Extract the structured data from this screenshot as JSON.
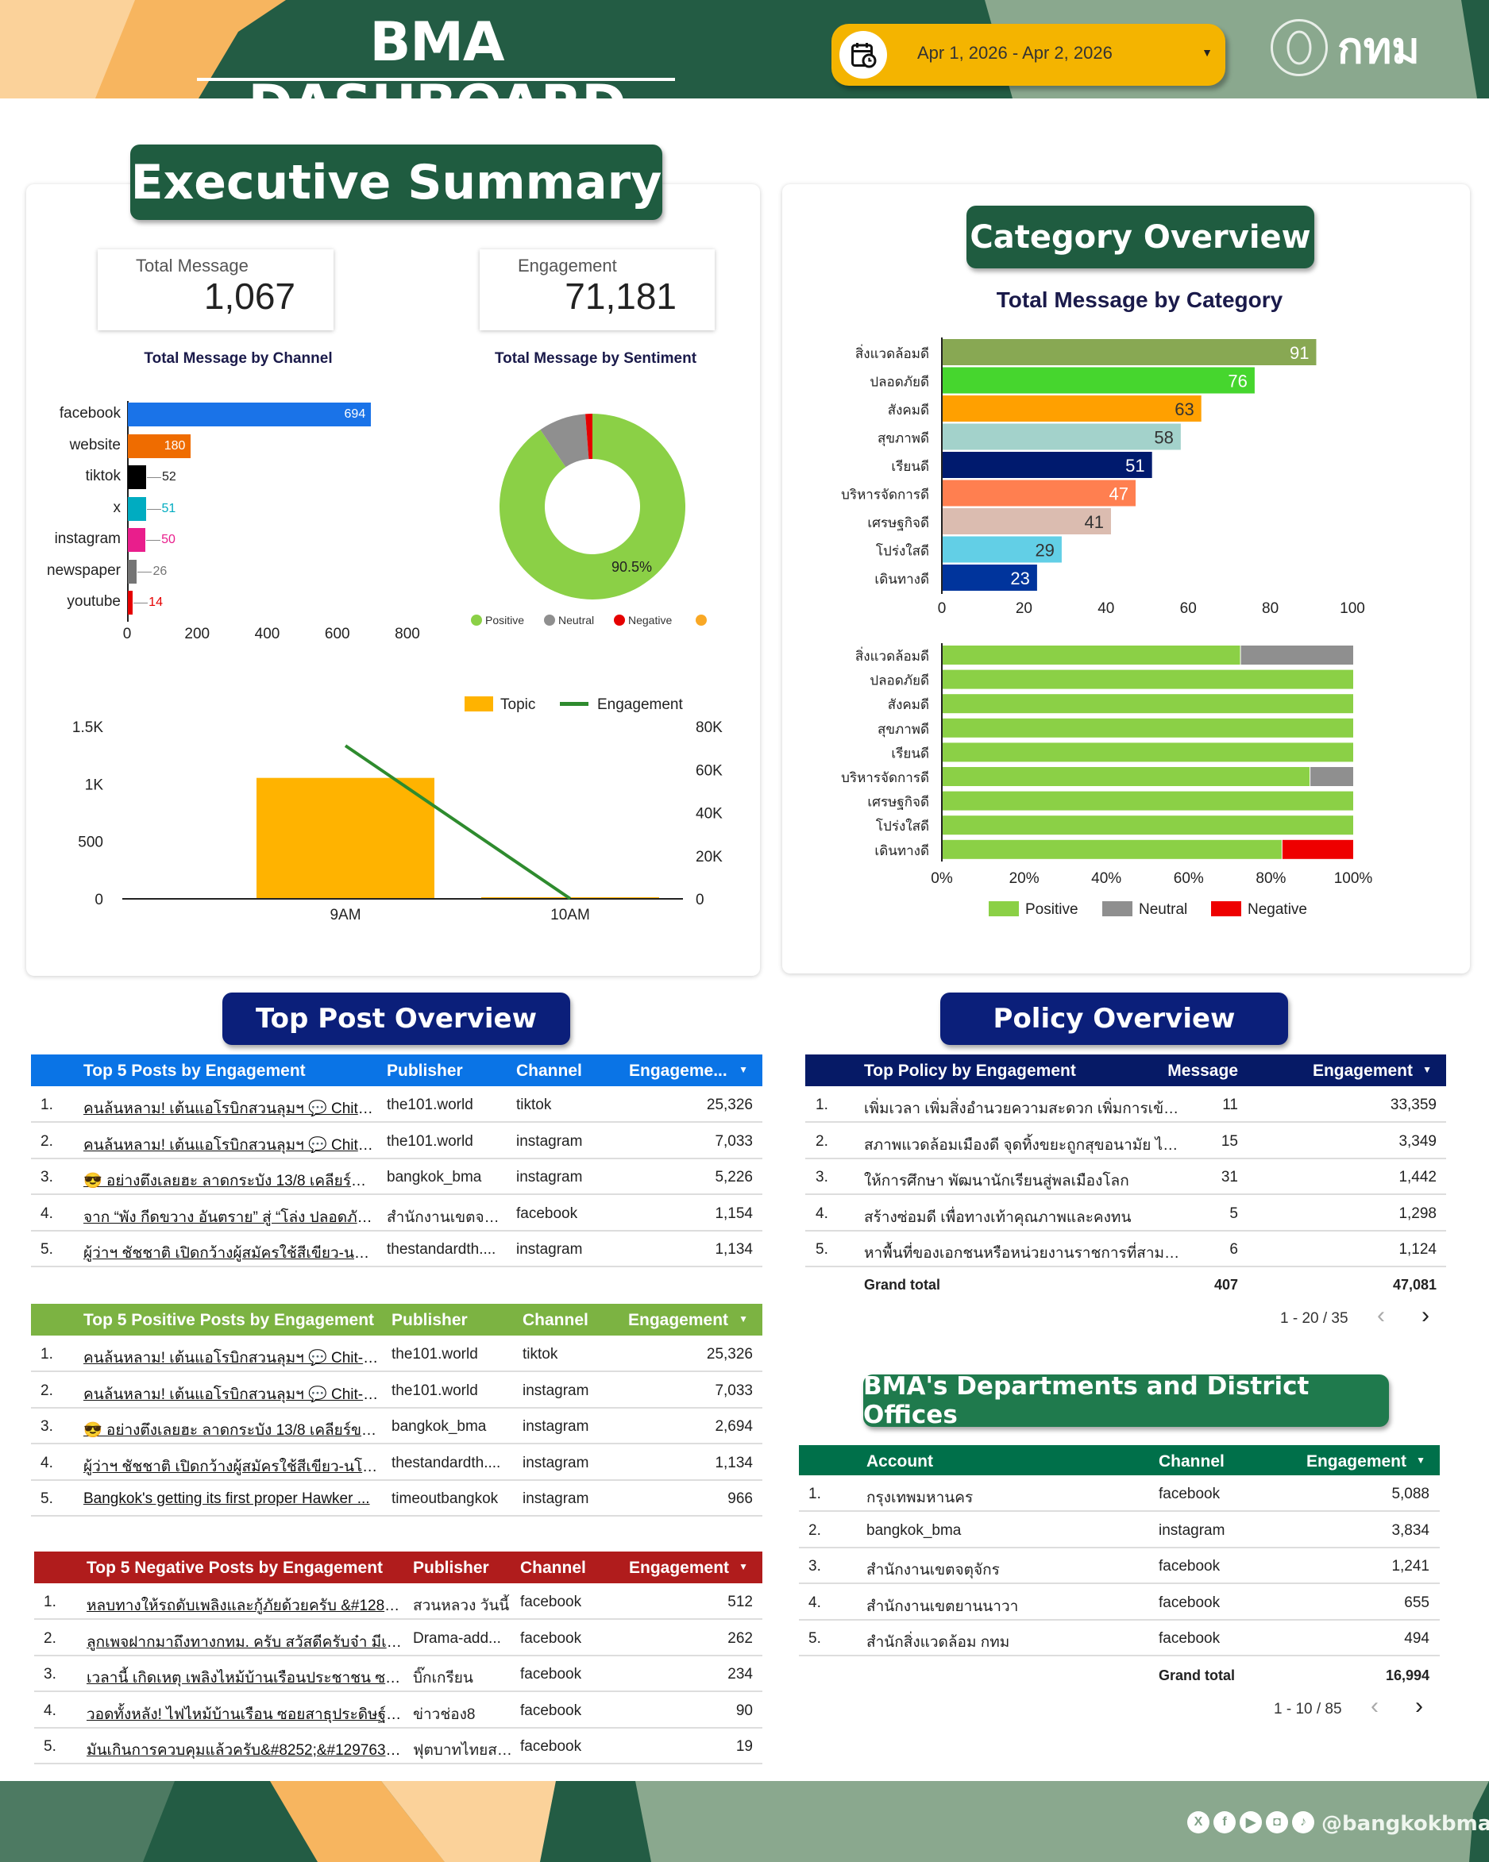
{
  "header": {
    "title": "BMA DASHBOARD",
    "date_range": "Apr 1, 2026 - Apr 2, 2026",
    "logo_text": "กทม"
  },
  "executive_summary": {
    "title": "Executive Summary",
    "kpis": [
      {
        "label": "Total Message",
        "value": "1,067"
      },
      {
        "label": "Engagement",
        "value": "71,181"
      }
    ]
  },
  "category_overview": {
    "title": "Category Overview"
  },
  "top_post_overview": {
    "title": "Top Post Overview"
  },
  "policy_overview": {
    "title": "Policy Overview"
  },
  "departments": {
    "title": "BMA's Departments and District Offices"
  },
  "colors": {
    "dark_green": "#1f5c40",
    "navy": "#0b1f7a",
    "yellow": "#f4b400"
  },
  "chart_data": [
    {
      "type": "bar",
      "orientation": "horizontal",
      "title": "Total Message by Channel",
      "categories": [
        "facebook",
        "website",
        "tiktok",
        "x",
        "instagram",
        "newspaper",
        "youtube"
      ],
      "values": [
        694,
        180,
        52,
        51,
        50,
        26,
        14
      ],
      "colors": [
        "#1a73e8",
        "#ef6c00",
        "#000000",
        "#00acc1",
        "#e91e8c",
        "#757575",
        "#e50000"
      ],
      "xlim": [
        0,
        800
      ],
      "xticks": [
        "0",
        "200",
        "400",
        "600",
        "800"
      ]
    },
    {
      "type": "pie",
      "donut": true,
      "title": "Total Message by Sentiment",
      "labels": [
        "Positive",
        "Neutral",
        "Negative"
      ],
      "values": [
        966,
        88,
        13
      ],
      "colors": [
        "#8bd046",
        "#8f8f8f",
        "#e50000",
        "#f9a825"
      ],
      "data_label": "90.5%"
    },
    {
      "type": "bar+line",
      "title": "",
      "categories": [
        "9AM",
        "10AM"
      ],
      "series": [
        {
          "name": "Topic",
          "type": "bar",
          "axis": "left",
          "values": [
            1053,
            14
          ],
          "color": "#ffb300"
        },
        {
          "name": "Engagement",
          "type": "line",
          "axis": "right",
          "values": [
            71100,
            81
          ],
          "color": "#2e8b2e"
        }
      ],
      "ylim_left": [
        0,
        1500
      ],
      "yticks_left": [
        "0",
        "500",
        "1K",
        "1.5K"
      ],
      "ylim_right": [
        0,
        80000
      ],
      "yticks_right": [
        "0",
        "20K",
        "40K",
        "60K",
        "80K"
      ]
    },
    {
      "type": "bar",
      "orientation": "horizontal",
      "title": "Total Message by Category",
      "categories": [
        "สิ่งแวดล้อมดี",
        "ปลอดภัยดี",
        "สังคมดี",
        "สุขภาพดี",
        "เรียนดี",
        "บริหารจัดการดี",
        "เศรษฐกิจดี",
        "โปร่งใสดี",
        "เดินทางดี"
      ],
      "values": [
        91,
        76,
        63,
        58,
        51,
        47,
        41,
        29,
        23
      ],
      "colors": [
        "#88a853",
        "#46d62e",
        "#ffa000",
        "#a3d2cb",
        "#001a6e",
        "#ff7f50",
        "#dbbcb0",
        "#62cfe6",
        "#00349c"
      ],
      "label_colors": [
        "#fff",
        "#fff",
        "#333",
        "#333",
        "#fff",
        "#fff",
        "#333",
        "#333",
        "#fff"
      ],
      "xlim": [
        0,
        100
      ],
      "xticks": [
        "0",
        "20",
        "40",
        "60",
        "80",
        "100"
      ]
    },
    {
      "type": "bar",
      "orientation": "horizontal",
      "stacked": "percent",
      "title": "",
      "categories": [
        "สิ่งแวดล้อมดี",
        "ปลอดภัยดี",
        "สังคมดี",
        "สุขภาพดี",
        "เรียนดี",
        "บริหารจัดการดี",
        "เศรษฐกิจดี",
        "โปร่งใสดี",
        "เดินทางดี"
      ],
      "series": [
        {
          "name": "Positive",
          "values": [
            72.5,
            100,
            100,
            100,
            100,
            89.4,
            100,
            100,
            82.6
          ],
          "color": "#8bd046"
        },
        {
          "name": "Neutral",
          "values": [
            27.5,
            0,
            0,
            0,
            0,
            10.6,
            0,
            0,
            0
          ],
          "color": "#8f8f8f"
        },
        {
          "name": "Negative",
          "values": [
            0,
            0,
            0,
            0,
            0,
            0,
            0,
            0,
            17.4
          ],
          "color": "#ee0000"
        }
      ],
      "xlim": [
        0,
        100
      ],
      "xticks": [
        "0%",
        "20%",
        "40%",
        "60%",
        "80%",
        "100%"
      ]
    }
  ],
  "tables": {
    "top_posts": {
      "headers": [
        "Top 5 Posts by Engagement",
        "Publisher",
        "Channel",
        "Engageme..."
      ],
      "rows": [
        {
          "n": "1.",
          "title": "คนล้นหลาม! เต้นแอโรบิกสวนลุมฯ 💬 Chit-Chat...",
          "publisher": "the101.world",
          "channel": "tiktok",
          "engagement": "25,326"
        },
        {
          "n": "2.",
          "title": "คนล้นหลาม! เต้นแอโรบิกสวนลุมฯ 💬 Chit-Chat...",
          "publisher": "the101.world",
          "channel": "instagram",
          "engagement": "7,033"
        },
        {
          "n": "3.",
          "title": "😎 อย่างตึงเลยฮะ ลาดกระบัง 13/8 เคลียร์ขยะกอง...",
          "publisher": "bangkok_bma",
          "channel": "instagram",
          "engagement": "5,226"
        },
        {
          "n": "4.",
          "title": "จาก “พัง กีดขวาง อันตราย” สู่ “โล่ง ปลอดภัย เดินส...",
          "publisher": "สำนักงานเขตจตุจักร",
          "channel": "facebook",
          "engagement": "1,154"
        },
        {
          "n": "5.",
          "title": "ผู้ว่าฯ ชัชชาติ เปิดกว้างผู้สมัครใช้สีเขียว-นโยบาย ก...",
          "publisher": "thestandardth....",
          "channel": "instagram",
          "engagement": "1,134"
        }
      ]
    },
    "positive_posts": {
      "headers": [
        "Top 5 Positive Posts by Engagement",
        "Publisher",
        "Channel",
        "Engagement"
      ],
      "rows": [
        {
          "n": "1.",
          "title": "คนล้นหลาม! เต้นแอโรบิกสวนลุมฯ 💬 Chit-Chat ...",
          "publisher": "the101.world",
          "channel": "tiktok",
          "engagement": "25,326"
        },
        {
          "n": "2.",
          "title": "คนล้นหลาม! เต้นแอโรบิกสวนลุมฯ 💬 Chit-Chat ...",
          "publisher": "the101.world",
          "channel": "instagram",
          "engagement": "7,033"
        },
        {
          "n": "3.",
          "title": "😎 อย่างตึงเลยฮะ ลาดกระบัง 13/8 เคลียร์ขยะกองโ...",
          "publisher": "bangkok_bma",
          "channel": "instagram",
          "engagement": "2,694"
        },
        {
          "n": "4.",
          "title": "ผู้ว่าฯ ชัชชาติ เปิดกว้างผู้สมัครใช้สีเขียว-นโยบาย กท...",
          "publisher": "thestandardth....",
          "channel": "instagram",
          "engagement": "1,134"
        },
        {
          "n": "5.",
          "title": "Bangkok's getting its first proper Hawker ...",
          "publisher": "timeoutbangkok",
          "channel": "instagram",
          "engagement": "966"
        }
      ]
    },
    "negative_posts": {
      "headers": [
        "Top 5 Negative Posts by Engagement",
        "Publisher",
        "Channel",
        "Engagement"
      ],
      "rows": [
        {
          "n": "1.",
          "title": "หลบทางให้รถดับเพลิงและกู้ภัยด้วยครับ &#128658;&...",
          "publisher": "สวนหลวง วันนี้",
          "channel": "facebook",
          "engagement": "512"
        },
        {
          "n": "2.",
          "title": "ลูกเพจฝากมาถึงทางกทม. ครับ สวัสดีครับจ๋า มีเรื่องอยาก...",
          "publisher": "Drama-add...",
          "channel": "facebook",
          "engagement": "262"
        },
        {
          "n": "3.",
          "title": "เวลานี้ เกิดเหตุ เพลิงไหม้บ้านเรือนประชาชน ซอยสาธุปร...",
          "publisher": "บิ๊กเกรียน",
          "channel": "facebook",
          "engagement": "234"
        },
        {
          "n": "4.",
          "title": "วอดทั้งหลัง! ไฟไหม้บ้านเรือน ซอยสาธุประดิษฐ์ 49 ลำสุ...",
          "publisher": "ข่าวช่อง8",
          "channel": "facebook",
          "engagement": "90"
        },
        {
          "n": "5.",
          "title": "มันเกินการควบคุมแล้วครับ&#8252;&#129763;&#...",
          "publisher": "ฟุตบาทไทยสไ...",
          "channel": "facebook",
          "engagement": "19"
        }
      ]
    },
    "policy": {
      "headers": [
        "Top Policy by Engagement",
        "Message",
        "Engagement"
      ],
      "rows": [
        {
          "n": "1.",
          "title": "เพิ่มเวลา เพิ่มสิ่งอำนวยความสะดวก เพิ่มการเข้า...",
          "message": "11",
          "engagement": "33,359"
        },
        {
          "n": "2.",
          "title": "สภาพแวดล้อมเมืองดี จุดทิ้งขยะถูกสุขอนามัย ไม่...",
          "message": "15",
          "engagement": "3,349"
        },
        {
          "n": "3.",
          "title": "ให้การศึกษา พัฒนานักเรียนสู่พลเมืองโลก",
          "message": "31",
          "engagement": "1,442"
        },
        {
          "n": "4.",
          "title": "สร้างซ่อมดี เพื่อทางเท้าคุณภาพและคงทน",
          "message": "5",
          "engagement": "1,298"
        },
        {
          "n": "5.",
          "title": "หาพื้นที่ของเอกชนหรือหน่วยงานราชการที่สามา...",
          "message": "6",
          "engagement": "1,124"
        }
      ],
      "grand_total_label": "Grand total",
      "grand_total_message": "407",
      "grand_total_engagement": "47,081",
      "pagination": "1 - 20 / 35"
    },
    "departments": {
      "headers": [
        "Account",
        "Channel",
        "Engagement"
      ],
      "rows": [
        {
          "n": "1.",
          "account": "กรุงเทพมหานคร",
          "channel": "facebook",
          "engagement": "5,088"
        },
        {
          "n": "2.",
          "account": "bangkok_bma",
          "channel": "instagram",
          "engagement": "3,834"
        },
        {
          "n": "3.",
          "account": "สำนักงานเขตจตุจักร",
          "channel": "facebook",
          "engagement": "1,241"
        },
        {
          "n": "4.",
          "account": "สำนักงานเขตยานนาวา",
          "channel": "facebook",
          "engagement": "655"
        },
        {
          "n": "5.",
          "account": "สำนักสิ่งแวดล้อม กทม",
          "channel": "facebook",
          "engagement": "494"
        }
      ],
      "grand_total_label": "Grand total",
      "grand_total_engagement": "16,994",
      "pagination": "1 - 10 / 85"
    }
  },
  "footer": {
    "handle": "@bangkokbma",
    "social_icons": [
      "x-icon",
      "facebook-icon",
      "youtube-icon",
      "instagram-icon",
      "tiktok-icon"
    ]
  }
}
